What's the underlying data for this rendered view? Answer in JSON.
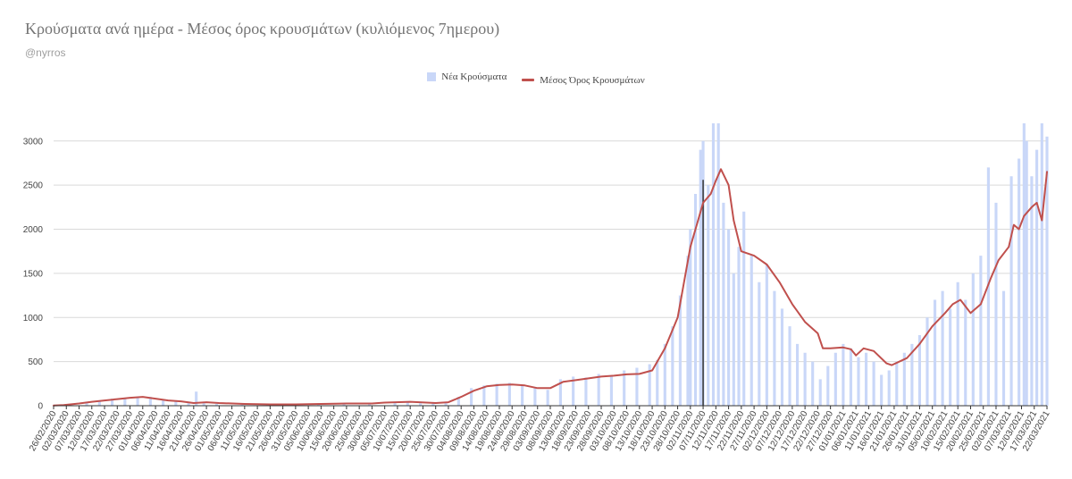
{
  "header": {
    "title": "Κρούσματα ανά ημέρα - Μέσος όρος κρουσμάτων (κυλιόμενος 7ημερου)",
    "subtitle": "@nyrros"
  },
  "chart_data": {
    "type": "bar",
    "x_start": "2020-02-26",
    "x_end": "2021-03-22",
    "ylim": [
      0,
      3200
    ],
    "yticks": [
      0,
      500,
      1000,
      1500,
      2000,
      2500,
      3000
    ],
    "xtick_labels": [
      "26/02/2020",
      "02/03/2020",
      "07/03/2020",
      "12/03/2020",
      "17/03/2020",
      "22/03/2020",
      "27/03/2020",
      "01/04/2020",
      "06/04/2020",
      "11/04/2020",
      "16/04/2020",
      "21/04/2020",
      "26/04/2020",
      "01/05/2020",
      "06/05/2020",
      "11/05/2020",
      "16/05/2020",
      "21/05/2020",
      "26/05/2020",
      "31/05/2020",
      "05/06/2020",
      "10/06/2020",
      "15/06/2020",
      "20/06/2020",
      "25/06/2020",
      "30/06/2020",
      "05/07/2020",
      "10/07/2020",
      "15/07/2020",
      "20/07/2020",
      "25/07/2020",
      "30/07/2020",
      "04/08/2020",
      "09/08/2020",
      "14/08/2020",
      "19/08/2020",
      "24/08/2020",
      "29/08/2020",
      "03/09/2020",
      "08/09/2020",
      "13/09/2020",
      "18/09/2020",
      "23/09/2020",
      "28/09/2020",
      "03/10/2020",
      "08/10/2020",
      "13/10/2020",
      "18/10/2020",
      "23/10/2020",
      "28/10/2020",
      "02/11/2020",
      "07/11/2020",
      "12/11/2020",
      "17/11/2020",
      "22/11/2020",
      "27/11/2020",
      "02/12/2020",
      "07/12/2020",
      "12/12/2020",
      "17/12/2020",
      "22/12/2020",
      "27/12/2020",
      "01/01/2021",
      "06/01/2021",
      "11/01/2021",
      "16/01/2021",
      "21/01/2021",
      "26/01/2021",
      "31/01/2021",
      "05/02/2021",
      "10/02/2021",
      "15/02/2021",
      "20/02/2021",
      "25/02/2021",
      "02/03/2021",
      "07/03/2021",
      "12/03/2021",
      "17/03/2021",
      "22/03/2021"
    ],
    "grid": true,
    "legend_position": "top",
    "marker_date": "2020-11-07",
    "series": [
      {
        "name": "Νέα Κρούσματα",
        "kind": "bar",
        "color": "#c9d7f8",
        "x": [
          "26/02/2020",
          "01/03/2020",
          "10/03/2020",
          "15/03/2020",
          "20/03/2020",
          "25/03/2020",
          "30/03/2020",
          "04/04/2020",
          "09/04/2020",
          "14/04/2020",
          "19/04/2020",
          "22/04/2020",
          "25/04/2020",
          "30/04/2020",
          "10/05/2020",
          "20/05/2020",
          "30/05/2020",
          "09/06/2020",
          "19/06/2020",
          "29/06/2020",
          "09/07/2020",
          "14/07/2020",
          "19/07/2020",
          "24/07/2020",
          "29/07/2020",
          "03/08/2020",
          "08/08/2020",
          "13/08/2020",
          "18/08/2020",
          "23/08/2020",
          "28/08/2020",
          "02/09/2020",
          "07/09/2020",
          "12/09/2020",
          "17/09/2020",
          "22/09/2020",
          "27/09/2020",
          "02/10/2020",
          "07/10/2020",
          "12/10/2020",
          "17/10/2020",
          "20/10/2020",
          "23/10/2020",
          "26/10/2020",
          "29/10/2020",
          "01/11/2020",
          "02/11/2020",
          "04/11/2020",
          "06/11/2020",
          "07/11/2020",
          "09/11/2020",
          "11/11/2020",
          "13/11/2020",
          "15/11/2020",
          "17/11/2020",
          "19/11/2020",
          "21/11/2020",
          "23/11/2020",
          "26/11/2020",
          "29/11/2020",
          "02/12/2020",
          "05/12/2020",
          "08/12/2020",
          "11/12/2020",
          "14/12/2020",
          "17/12/2020",
          "20/12/2020",
          "23/12/2020",
          "26/12/2020",
          "29/12/2020",
          "01/01/2021",
          "04/01/2021",
          "07/01/2021",
          "10/01/2021",
          "13/01/2021",
          "16/01/2021",
          "19/01/2021",
          "22/01/2021",
          "25/01/2021",
          "28/01/2021",
          "31/01/2021",
          "03/02/2021",
          "06/02/2021",
          "09/02/2021",
          "12/02/2021",
          "15/02/2021",
          "18/02/2021",
          "21/02/2021",
          "24/02/2021",
          "27/02/2021",
          "02/03/2021",
          "05/03/2021",
          "08/03/2021",
          "11/03/2021",
          "13/03/2021",
          "14/03/2021",
          "16/03/2021",
          "18/03/2021",
          "20/03/2021",
          "22/03/2021"
        ],
        "values": [
          3,
          10,
          30,
          60,
          80,
          90,
          95,
          100,
          60,
          50,
          40,
          160,
          30,
          20,
          15,
          12,
          10,
          20,
          25,
          20,
          30,
          35,
          28,
          25,
          40,
          100,
          200,
          230,
          250,
          260,
          230,
          200,
          180,
          300,
          330,
          320,
          360,
          330,
          400,
          430,
          470,
          520,
          700,
          900,
          1250,
          1700,
          2000,
          2400,
          2900,
          3000,
          2500,
          3200,
          3200,
          2300,
          2000,
          1500,
          1800,
          2200,
          1700,
          1400,
          1600,
          1300,
          1100,
          900,
          700,
          600,
          500,
          300,
          450,
          600,
          700,
          650,
          550,
          600,
          500,
          350,
          400,
          500,
          600,
          700,
          800,
          1000,
          1200,
          1300,
          1100,
          1400,
          1200,
          1500,
          1700,
          2700,
          2300,
          1300,
          2600,
          2800,
          3200,
          3000,
          2600,
          2900,
          3200,
          3050
        ]
      },
      {
        "name": "Μέσος Όρος Κρουσμάτων",
        "kind": "line",
        "color": "#c0504d",
        "x": [
          "26/02/2020",
          "01/03/2020",
          "07/03/2020",
          "12/03/2020",
          "17/03/2020",
          "22/03/2020",
          "27/03/2020",
          "01/04/2020",
          "06/04/2020",
          "11/04/2020",
          "16/04/2020",
          "21/04/2020",
          "26/04/2020",
          "01/05/2020",
          "11/05/2020",
          "21/05/2020",
          "31/05/2020",
          "10/06/2020",
          "20/06/2020",
          "30/06/2020",
          "05/07/2020",
          "15/07/2020",
          "25/07/2020",
          "30/07/2020",
          "04/08/2020",
          "09/08/2020",
          "14/08/2020",
          "19/08/2020",
          "24/08/2020",
          "29/08/2020",
          "03/09/2020",
          "08/09/2020",
          "13/09/2020",
          "18/09/2020",
          "23/09/2020",
          "28/09/2020",
          "03/10/2020",
          "08/10/2020",
          "13/10/2020",
          "18/10/2020",
          "23/10/2020",
          "28/10/2020",
          "02/11/2020",
          "05/11/2020",
          "07/11/2020",
          "10/11/2020",
          "12/11/2020",
          "14/11/2020",
          "17/11/2020",
          "19/11/2020",
          "22/11/2020",
          "27/11/2020",
          "02/12/2020",
          "07/12/2020",
          "12/12/2020",
          "17/12/2020",
          "22/12/2020",
          "24/12/2020",
          "27/12/2020",
          "01/01/2021",
          "04/01/2021",
          "06/01/2021",
          "09/01/2021",
          "13/01/2021",
          "18/01/2021",
          "20/01/2021",
          "26/01/2021",
          "31/01/2021",
          "05/02/2021",
          "10/02/2021",
          "13/02/2021",
          "16/02/2021",
          "20/02/2021",
          "24/02/2021",
          "28/02/2021",
          "03/03/2021",
          "07/03/2021",
          "09/03/2021",
          "11/03/2021",
          "13/03/2021",
          "16/03/2021",
          "18/03/2021",
          "20/03/2021",
          "22/03/2021"
        ],
        "values": [
          2,
          8,
          25,
          45,
          60,
          75,
          90,
          100,
          80,
          60,
          50,
          30,
          40,
          30,
          20,
          15,
          15,
          20,
          25,
          25,
          35,
          45,
          30,
          40,
          100,
          170,
          220,
          235,
          240,
          230,
          200,
          200,
          270,
          290,
          310,
          330,
          340,
          355,
          360,
          400,
          650,
          1000,
          1800,
          2100,
          2300,
          2400,
          2550,
          2680,
          2500,
          2100,
          1750,
          1700,
          1600,
          1400,
          1150,
          950,
          820,
          650,
          650,
          660,
          640,
          570,
          650,
          620,
          480,
          460,
          540,
          700,
          900,
          1050,
          1150,
          1200,
          1050,
          1150,
          1450,
          1650,
          1800,
          2050,
          2000,
          2150,
          2250,
          2300,
          2100,
          2650
        ]
      }
    ]
  }
}
